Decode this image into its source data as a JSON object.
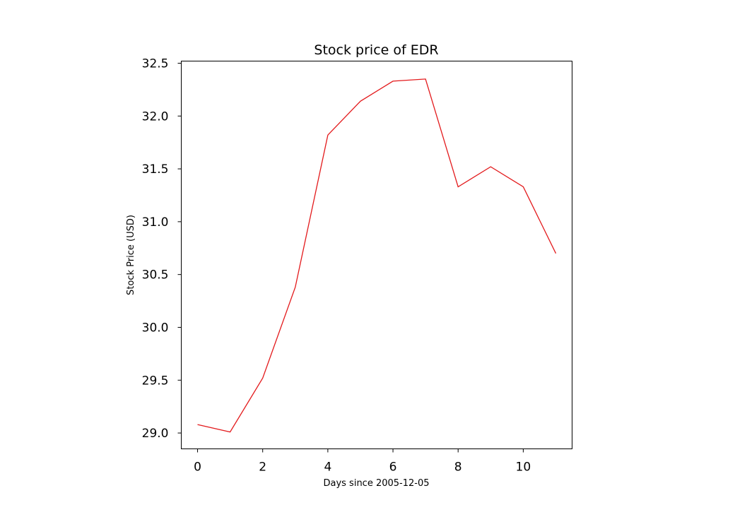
{
  "chart_data": {
    "type": "line",
    "title": "Stock price of EDR",
    "xlabel": "Days since 2005-12-05",
    "ylabel": "Stock Price (USD)",
    "x": [
      0,
      1,
      2,
      3,
      4,
      5,
      6,
      7,
      8,
      9,
      10,
      11
    ],
    "series": [
      {
        "values": [
          29.08,
          29.01,
          29.52,
          30.38,
          31.82,
          32.14,
          32.33,
          32.35,
          31.33,
          31.52,
          31.33,
          30.7
        ]
      }
    ],
    "xlim": [
      -0.5,
      11.5
    ],
    "ylim": [
      28.85,
      32.52
    ],
    "xticks": [
      0,
      2,
      4,
      6,
      8,
      10
    ],
    "xtick_labels": [
      "0",
      "2",
      "4",
      "6",
      "8",
      "10"
    ],
    "yticks": [
      29.0,
      29.5,
      30.0,
      30.5,
      31.0,
      31.5,
      32.0,
      32.5
    ],
    "ytick_labels": [
      "29.0",
      "29.5",
      "30.0",
      "30.5",
      "31.0",
      "31.5",
      "32.0",
      "32.5"
    ],
    "grid": false,
    "line_color": "#e31a1c"
  }
}
